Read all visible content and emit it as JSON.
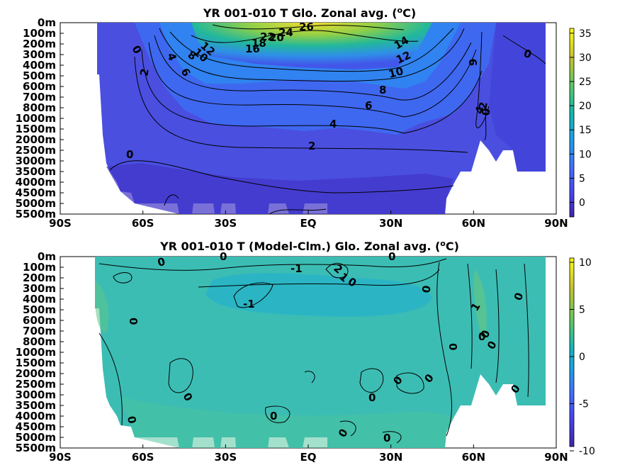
{
  "chart_data": [
    {
      "type": "heatmap",
      "title_main": "YR 001-010 T Glo. Zonal avg. (",
      "title_sup": "o",
      "title_end": "C)",
      "x_ticks": [
        "90S",
        "60S",
        "30S",
        "EQ",
        "30N",
        "60N",
        "90N"
      ],
      "y_ticks": [
        "0m",
        "100m",
        "200m",
        "300m",
        "400m",
        "500m",
        "600m",
        "700m",
        "800m",
        "1000m",
        "1500m",
        "2000m",
        "2500m",
        "3000m",
        "3500m",
        "4000m",
        "4500m",
        "5000m",
        "5500m"
      ],
      "colorbar": {
        "min": -3,
        "max": 36,
        "ticks": [
          "35",
          "30",
          "25",
          "20",
          "15",
          "10",
          "5",
          "0"
        ],
        "tick_values": [
          35,
          30,
          25,
          20,
          15,
          10,
          5,
          0
        ]
      },
      "contour_labels": [
        "26",
        "24",
        "22",
        "20",
        "18",
        "16",
        "14",
        "12",
        "10",
        "8",
        "6",
        "4",
        "2",
        "0",
        "9"
      ],
      "colors": {
        "cold": "#3b2fbf",
        "deep": "#4a4fe8",
        "mid": "#3f88f0",
        "warm": "#2fb8a3",
        "warmer": "#86c94a",
        "hot": "#f6e02c"
      }
    },
    {
      "type": "heatmap",
      "title_main": "YR 001-010 T (Model-Clm.) Glo. Zonal avg. (",
      "title_sup": "o",
      "title_end": "C)",
      "x_ticks": [
        "90S",
        "60S",
        "30S",
        "EQ",
        "30N",
        "60N",
        "90N"
      ],
      "y_ticks": [
        "0m",
        "100m",
        "200m",
        "300m",
        "400m",
        "500m",
        "600m",
        "700m",
        "800m",
        "1000m",
        "1500m",
        "2000m",
        "2500m",
        "3000m",
        "3500m",
        "4000m",
        "4500m",
        "5000m",
        "5500m"
      ],
      "colorbar": {
        "min": -10,
        "max": 10,
        "ticks": [
          "10",
          "5",
          "0",
          "-5",
          "-10"
        ],
        "tick_values": [
          10,
          5,
          0,
          -5,
          -10
        ]
      },
      "contour_labels": [
        "0",
        "-1",
        "1",
        "2",
        "0"
      ],
      "colors": {
        "field": "#3dbfb4",
        "field_light": "#44c5a6",
        "field_dark": "#22b3c6"
      }
    }
  ]
}
